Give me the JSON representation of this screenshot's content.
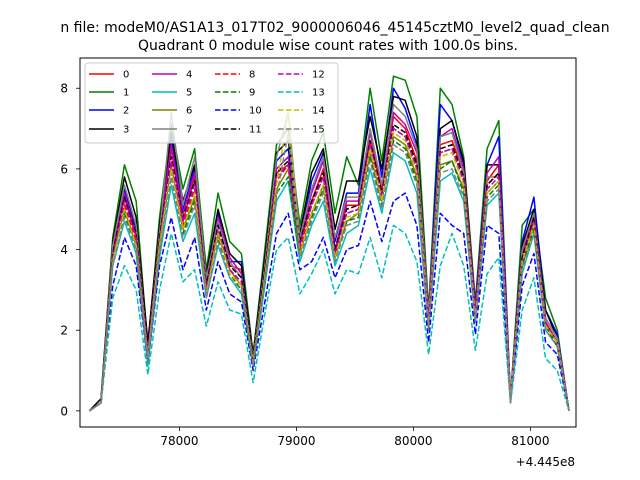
{
  "figure": {
    "suptitle": "n file: modeM0/AS1A13_017T02_9000006046_45145cztM0_level2_quad_clean",
    "title": "Quadrant 0 module wise count rates with 100.0s bins.",
    "x_offset_label": "+4.445e8"
  },
  "chart_data": {
    "type": "line",
    "title": "Quadrant 0 module wise count rates with 100.0s bins.",
    "xlabel": "",
    "ylabel": "",
    "x_offset": 444500000,
    "xlim": [
      77150,
      81390
    ],
    "ylim": [
      -0.4,
      8.75
    ],
    "xticks": [
      78000,
      79000,
      80000,
      81000
    ],
    "xtick_labels": [
      "78000",
      "79000",
      "80000",
      "81000"
    ],
    "yticks": [
      0,
      2,
      4,
      6,
      8
    ],
    "ytick_labels": [
      "0",
      "2",
      "4",
      "6",
      "8"
    ],
    "grid": false,
    "legend_position": "top-left",
    "legend_columns": 4,
    "x": [
      77230,
      77330,
      77430,
      77530,
      77630,
      77730,
      77830,
      77930,
      78030,
      78130,
      78230,
      78330,
      78430,
      78530,
      78630,
      78730,
      78830,
      78930,
      79030,
      79130,
      79230,
      79330,
      79430,
      79530,
      79630,
      79730,
      79830,
      79930,
      80030,
      80130,
      80230,
      80330,
      80430,
      80530,
      80630,
      80730,
      80830,
      80930,
      81030,
      81130,
      81230,
      81330
    ],
    "series": [
      {
        "name": "0",
        "color": "#ff0000",
        "dash": "solid",
        "values": [
          0.0,
          0.2,
          3.9,
          5.3,
          4.3,
          1.4,
          4.3,
          6.5,
          4.7,
          5.8,
          3.1,
          4.7,
          3.6,
          3.5,
          1.3,
          3.4,
          5.9,
          6.1,
          4.1,
          5.2,
          6.0,
          3.9,
          5.1,
          5.1,
          6.7,
          5.5,
          7.3,
          7.0,
          6.2,
          2.3,
          6.6,
          6.7,
          5.9,
          2.5,
          5.7,
          6.1,
          0.3,
          3.7,
          4.8,
          2.2,
          1.7,
          0.0
        ]
      },
      {
        "name": "1",
        "color": "#008000",
        "dash": "solid",
        "values": [
          0.0,
          0.3,
          4.3,
          6.1,
          5.2,
          1.6,
          4.8,
          7.1,
          5.5,
          6.5,
          3.5,
          5.4,
          4.2,
          3.9,
          1.4,
          4.0,
          6.6,
          7.0,
          4.6,
          6.2,
          6.9,
          4.9,
          6.3,
          5.6,
          8.0,
          6.2,
          8.3,
          8.2,
          7.3,
          2.5,
          8.0,
          7.6,
          6.3,
          2.7,
          6.5,
          7.2,
          0.3,
          4.6,
          5.0,
          2.8,
          2.0,
          0.0
        ]
      },
      {
        "name": "2",
        "color": "#0000ff",
        "dash": "solid",
        "values": [
          0.0,
          0.2,
          4.1,
          5.5,
          4.5,
          1.6,
          4.5,
          6.7,
          5.0,
          6.0,
          3.3,
          4.9,
          3.7,
          3.7,
          1.3,
          3.6,
          6.2,
          6.5,
          4.3,
          5.7,
          6.4,
          4.2,
          5.4,
          5.4,
          7.6,
          5.8,
          8.0,
          7.5,
          6.6,
          2.4,
          7.6,
          7.2,
          6.1,
          2.6,
          6.1,
          6.8,
          0.3,
          4.2,
          5.3,
          2.5,
          1.9,
          0.0
        ]
      },
      {
        "name": "3",
        "color": "#000000",
        "dash": "solid",
        "values": [
          0.0,
          0.3,
          4.2,
          5.8,
          4.8,
          1.7,
          4.6,
          6.9,
          5.2,
          6.1,
          3.4,
          5.0,
          3.9,
          3.6,
          1.4,
          3.8,
          6.4,
          6.7,
          4.4,
          5.9,
          6.5,
          4.5,
          5.7,
          5.7,
          7.3,
          6.0,
          7.8,
          7.7,
          6.8,
          2.4,
          7.0,
          7.2,
          6.2,
          2.5,
          6.1,
          6.1,
          0.3,
          4.1,
          5.0,
          2.5,
          1.8,
          0.0
        ]
      },
      {
        "name": "4",
        "color": "#bf00bf",
        "dash": "solid",
        "values": [
          0.0,
          0.2,
          4.0,
          5.4,
          4.4,
          1.5,
          4.4,
          6.6,
          4.9,
          5.9,
          3.2,
          4.8,
          3.8,
          3.4,
          1.3,
          3.5,
          6.0,
          6.3,
          4.2,
          5.4,
          6.2,
          4.0,
          5.2,
          5.2,
          6.9,
          5.6,
          7.4,
          7.1,
          6.4,
          2.3,
          6.8,
          7.0,
          6.0,
          2.5,
          5.9,
          6.3,
          0.3,
          3.9,
          4.9,
          2.3,
          1.8,
          0.0
        ]
      },
      {
        "name": "5",
        "color": "#00bfbf",
        "dash": "solid",
        "values": [
          0.0,
          0.2,
          3.6,
          4.7,
          3.9,
          1.1,
          3.8,
          5.6,
          4.2,
          4.9,
          2.8,
          4.1,
          3.3,
          2.9,
          1.1,
          3.1,
          5.2,
          5.7,
          3.7,
          4.6,
          5.2,
          3.6,
          4.4,
          4.6,
          6.0,
          4.9,
          6.4,
          6.2,
          5.4,
          2.0,
          5.7,
          5.9,
          5.2,
          2.2,
          5.1,
          5.4,
          0.2,
          3.4,
          4.4,
          2.0,
          1.6,
          0.0
        ]
      },
      {
        "name": "6",
        "color": "#808000",
        "dash": "solid",
        "values": [
          0.0,
          0.2,
          3.8,
          5.0,
          4.1,
          1.3,
          4.0,
          6.1,
          4.5,
          5.3,
          3.0,
          4.4,
          3.5,
          3.1,
          1.2,
          3.3,
          5.5,
          6.0,
          3.9,
          4.9,
          5.6,
          3.8,
          4.7,
          4.9,
          6.4,
          5.2,
          6.8,
          6.6,
          5.8,
          2.1,
          6.1,
          6.2,
          5.5,
          2.3,
          5.4,
          5.7,
          0.3,
          3.6,
          4.6,
          2.1,
          1.7,
          0.0
        ]
      },
      {
        "name": "7",
        "color": "#808080",
        "dash": "solid",
        "values": [
          0.0,
          0.2,
          4.1,
          5.6,
          4.6,
          1.4,
          4.4,
          7.4,
          5.1,
          6.3,
          3.3,
          4.7,
          3.7,
          3.3,
          1.3,
          3.6,
          6.3,
          7.4,
          4.3,
          5.5,
          6.3,
          4.3,
          5.3,
          5.3,
          7.0,
          5.6,
          7.6,
          7.3,
          6.5,
          2.4,
          6.8,
          6.9,
          5.9,
          2.4,
          5.8,
          5.8,
          0.3,
          4.0,
          4.9,
          2.3,
          1.8,
          0.0
        ]
      },
      {
        "name": "8",
        "color": "#ff0000",
        "dash": "dashed",
        "values": [
          0.0,
          0.2,
          3.8,
          5.1,
          4.2,
          1.3,
          4.2,
          6.2,
          4.6,
          5.5,
          3.0,
          4.5,
          3.5,
          3.2,
          1.2,
          3.4,
          5.7,
          6.1,
          4.0,
          5.1,
          5.8,
          3.9,
          4.9,
          5.0,
          6.6,
          5.3,
          7.0,
          6.8,
          6.0,
          2.2,
          6.4,
          6.5,
          5.7,
          2.4,
          5.6,
          5.9,
          0.3,
          3.8,
          4.7,
          2.2,
          1.7,
          0.0
        ]
      },
      {
        "name": "9",
        "color": "#008000",
        "dash": "dashed",
        "values": [
          0.0,
          0.2,
          3.7,
          4.9,
          4.0,
          1.3,
          4.0,
          5.9,
          4.4,
          5.2,
          2.9,
          4.3,
          3.4,
          3.0,
          1.2,
          3.2,
          5.4,
          5.8,
          3.8,
          4.8,
          5.5,
          3.7,
          4.7,
          4.8,
          6.3,
          5.1,
          6.7,
          6.5,
          5.7,
          2.1,
          6.0,
          6.2,
          5.4,
          2.3,
          5.3,
          5.6,
          0.3,
          3.6,
          4.5,
          2.1,
          1.6,
          0.0
        ]
      },
      {
        "name": "10",
        "color": "#0000ff",
        "dash": "dashed",
        "values": [
          0.0,
          0.2,
          3.1,
          4.3,
          3.6,
          1.2,
          3.6,
          4.8,
          3.5,
          4.3,
          2.5,
          3.7,
          2.9,
          2.7,
          1.0,
          2.7,
          4.4,
          4.9,
          3.5,
          3.7,
          4.3,
          3.3,
          4.0,
          4.1,
          5.2,
          4.2,
          5.2,
          5.4,
          4.6,
          1.7,
          4.9,
          4.6,
          4.4,
          1.9,
          4.6,
          4.4,
          0.2,
          3.1,
          3.9,
          1.7,
          1.4,
          0.0
        ]
      },
      {
        "name": "11",
        "color": "#000000",
        "dash": "dashed",
        "values": [
          0.0,
          0.2,
          3.9,
          5.3,
          4.4,
          1.5,
          4.3,
          6.3,
          4.8,
          5.7,
          3.1,
          4.6,
          3.6,
          3.3,
          1.3,
          3.5,
          5.9,
          6.2,
          4.2,
          5.2,
          5.9,
          4.0,
          5.0,
          5.1,
          6.7,
          5.4,
          7.1,
          6.9,
          6.1,
          2.2,
          6.5,
          6.6,
          5.8,
          2.4,
          5.6,
          5.9,
          0.3,
          3.8,
          4.8,
          2.2,
          1.7,
          0.0
        ]
      },
      {
        "name": "12",
        "color": "#bf00bf",
        "dash": "dashed",
        "values": [
          0.0,
          0.2,
          3.8,
          5.2,
          4.3,
          1.4,
          4.2,
          6.2,
          4.7,
          5.6,
          3.0,
          4.5,
          3.5,
          3.2,
          1.2,
          3.4,
          5.8,
          6.1,
          4.1,
          5.1,
          5.8,
          3.9,
          4.9,
          5.0,
          6.6,
          5.3,
          7.0,
          6.8,
          6.0,
          2.2,
          6.4,
          6.5,
          5.7,
          2.4,
          5.5,
          5.8,
          0.3,
          3.7,
          4.7,
          2.2,
          1.7,
          0.0
        ]
      },
      {
        "name": "13",
        "color": "#00bfbf",
        "dash": "dashed",
        "values": [
          0.0,
          0.2,
          2.8,
          3.6,
          3.0,
          0.9,
          3.0,
          4.4,
          3.2,
          3.5,
          2.1,
          3.2,
          2.5,
          2.4,
          0.7,
          2.4,
          4.0,
          4.3,
          2.9,
          3.4,
          4.0,
          2.9,
          3.5,
          3.4,
          4.3,
          3.3,
          4.6,
          4.4,
          3.7,
          1.4,
          3.6,
          4.4,
          3.6,
          1.5,
          3.4,
          3.8,
          0.2,
          2.5,
          3.3,
          1.3,
          1.0,
          0.0
        ]
      },
      {
        "name": "14",
        "color": "#bfbf00",
        "dash": "dashed",
        "values": [
          0.0,
          0.2,
          3.7,
          5.0,
          4.1,
          1.3,
          4.1,
          6.0,
          4.5,
          5.4,
          2.9,
          4.4,
          3.4,
          3.1,
          1.2,
          3.3,
          5.6,
          7.4,
          3.9,
          4.9,
          5.6,
          3.8,
          4.8,
          4.9,
          6.5,
          5.2,
          6.9,
          6.7,
          5.9,
          2.1,
          6.3,
          6.4,
          5.6,
          2.3,
          5.4,
          5.7,
          0.3,
          3.7,
          4.6,
          2.1,
          1.7,
          0.0
        ]
      },
      {
        "name": "15",
        "color": "#808080",
        "dash": "dashed",
        "values": [
          0.0,
          0.2,
          3.6,
          4.8,
          4.0,
          1.2,
          3.9,
          5.8,
          4.3,
          5.1,
          2.8,
          4.2,
          3.3,
          3.0,
          1.1,
          3.2,
          5.3,
          6.9,
          3.8,
          4.7,
          5.4,
          3.7,
          4.6,
          4.7,
          6.2,
          5.0,
          6.6,
          6.4,
          5.6,
          2.0,
          5.9,
          6.0,
          5.3,
          2.2,
          5.2,
          5.5,
          0.2,
          3.5,
          4.4,
          2.0,
          1.6,
          0.0
        ]
      }
    ]
  }
}
